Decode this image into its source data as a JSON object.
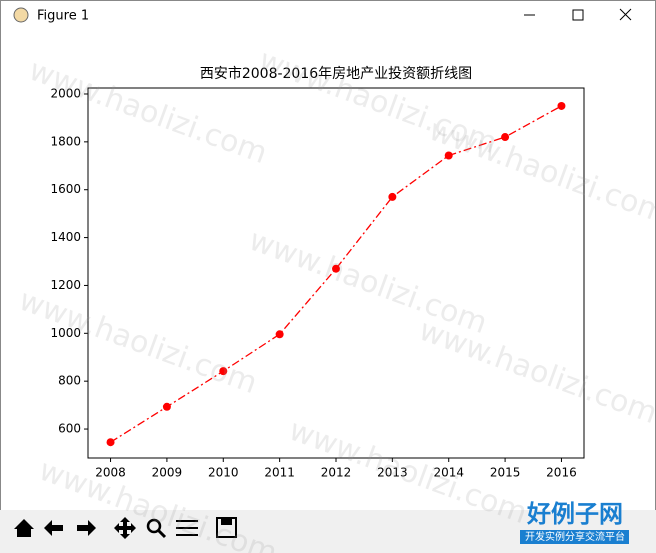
{
  "window": {
    "title": "Figure 1"
  },
  "watermark": "www.haolizi.com",
  "logo": {
    "title": "好例子网",
    "subtitle": "开发实例分享交流平台"
  },
  "chart_data": {
    "type": "line",
    "title": "西安市2008-2016年房地产业投资额折线图",
    "x": [
      2008,
      2009,
      2010,
      2011,
      2012,
      2013,
      2014,
      2015,
      2016
    ],
    "series": [
      {
        "color": "#ff0000",
        "values": [
          545,
          693,
          842,
          996,
          1270,
          1570,
          1743,
          1820,
          1950
        ]
      }
    ],
    "line_style": "dashdot",
    "marker": "circle",
    "xlim": [
      2007.6,
      2016.4
    ],
    "xticks": [
      2008,
      2009,
      2010,
      2011,
      2012,
      2013,
      2014,
      2015,
      2016
    ],
    "ylim": [
      479,
      2025
    ],
    "yticks": [
      600,
      800,
      1000,
      1200,
      1400,
      1600,
      1800,
      2000
    ],
    "grid": false
  }
}
